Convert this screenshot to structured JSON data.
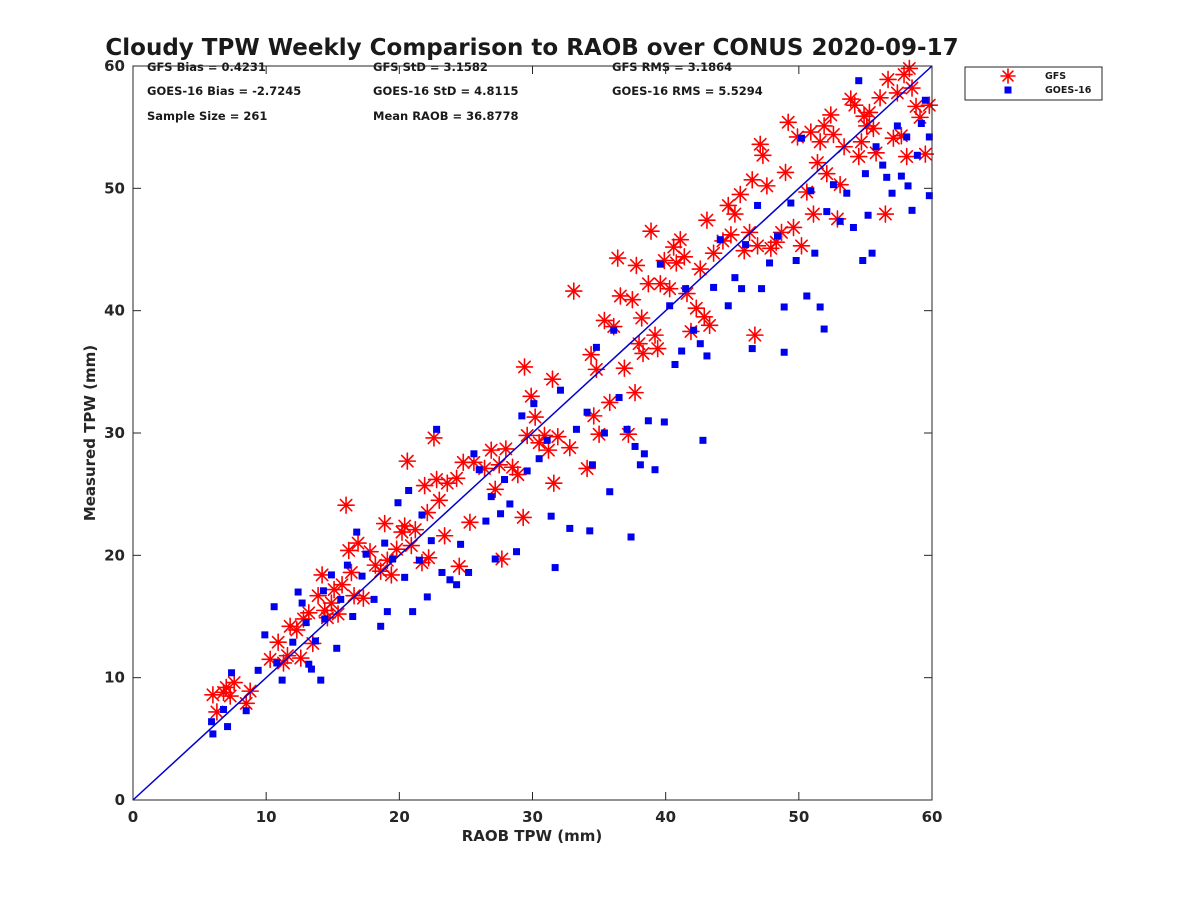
{
  "chart_data": {
    "type": "scatter",
    "title": "Cloudy TPW Weekly Comparison to RAOB over CONUS 2020-09-17",
    "xlabel": "RAOB TPW (mm)",
    "ylabel": "Measured TPW (mm)",
    "xlim": [
      0,
      60
    ],
    "ylim": [
      0,
      60
    ],
    "xticks": [
      0,
      10,
      20,
      30,
      40,
      50,
      60
    ],
    "yticks": [
      0,
      10,
      20,
      30,
      40,
      50,
      60
    ],
    "grid": false,
    "legend_position": "outside-top-right",
    "reference_line": {
      "name": "1:1 line",
      "color": "#0000d0",
      "x": [
        0,
        60
      ],
      "y": [
        0,
        60
      ]
    },
    "stats": [
      "GFS Bias = 0.4231",
      "GFS StD = 3.1582",
      "GFS RMS = 3.1864",
      "GOES-16 Bias = -2.7245",
      "GOES-16 StD = 4.8115",
      "GOES-16 RMS = 5.5294",
      "Sample Size = 261",
      "Mean RAOB = 36.8778"
    ],
    "series": [
      {
        "name": "GFS",
        "marker": "asterisk",
        "color": "#ff0000",
        "points": [
          [
            6,
            8.6
          ],
          [
            6.3,
            7.2
          ],
          [
            6.8,
            8.8
          ],
          [
            7,
            9.2
          ],
          [
            7.3,
            8.5
          ],
          [
            7.6,
            9.6
          ],
          [
            8.5,
            7.9
          ],
          [
            8.8,
            8.9
          ],
          [
            10.3,
            11.5
          ],
          [
            10.9,
            12.9
          ],
          [
            11.3,
            11.2
          ],
          [
            11.6,
            11.8
          ],
          [
            11.8,
            14.2
          ],
          [
            12.3,
            13.9
          ],
          [
            12.6,
            11.6
          ],
          [
            12.8,
            14.8
          ],
          [
            13.2,
            15.3
          ],
          [
            13.5,
            12.8
          ],
          [
            13.9,
            16.7
          ],
          [
            14.2,
            18.4
          ],
          [
            14.4,
            15.5
          ],
          [
            14.6,
            14.9
          ],
          [
            14.9,
            16.1
          ],
          [
            15.1,
            17.2
          ],
          [
            15.4,
            15.2
          ],
          [
            15.7,
            17.6
          ],
          [
            16,
            24.1
          ],
          [
            16.2,
            20.4
          ],
          [
            16.4,
            18.6
          ],
          [
            16.6,
            16.7
          ],
          [
            16.9,
            21
          ],
          [
            17.3,
            16.5
          ],
          [
            17.8,
            20.3
          ],
          [
            18.2,
            19.2
          ],
          [
            18.6,
            18.7
          ],
          [
            18.9,
            22.6
          ],
          [
            19.1,
            19.6
          ],
          [
            19.4,
            18.4
          ],
          [
            19.8,
            20.5
          ],
          [
            20.2,
            21.9
          ],
          [
            20.4,
            22.4
          ],
          [
            20.6,
            27.7
          ],
          [
            20.9,
            20.8
          ],
          [
            21.2,
            22.1
          ],
          [
            21.7,
            19.4
          ],
          [
            21.9,
            25.7
          ],
          [
            22.1,
            23.5
          ],
          [
            22.2,
            19.8
          ],
          [
            22.6,
            29.6
          ],
          [
            22.8,
            26.2
          ],
          [
            23,
            24.5
          ],
          [
            23.4,
            21.6
          ],
          [
            23.6,
            25.9
          ],
          [
            24.3,
            26.3
          ],
          [
            24.5,
            19.1
          ],
          [
            24.8,
            27.6
          ],
          [
            25.3,
            22.7
          ],
          [
            25.6,
            27.6
          ],
          [
            26.4,
            27.1
          ],
          [
            26.9,
            28.6
          ],
          [
            27.2,
            25.4
          ],
          [
            27.5,
            27.4
          ],
          [
            27.7,
            19.7
          ],
          [
            28,
            28.7
          ],
          [
            28.5,
            27.2
          ],
          [
            28.9,
            26.6
          ],
          [
            29.3,
            23.1
          ],
          [
            29.4,
            35.4
          ],
          [
            29.6,
            29.8
          ],
          [
            29.9,
            33
          ],
          [
            30.2,
            31.3
          ],
          [
            30.5,
            29.2
          ],
          [
            30.9,
            29.8
          ],
          [
            31.2,
            28.6
          ],
          [
            31.5,
            34.4
          ],
          [
            31.6,
            25.9
          ],
          [
            31.9,
            29.7
          ],
          [
            32.8,
            28.8
          ],
          [
            33.1,
            41.6
          ],
          [
            34.1,
            27.1
          ],
          [
            34.4,
            36.4
          ],
          [
            34.6,
            31.4
          ],
          [
            34.8,
            35.2
          ],
          [
            35,
            29.9
          ],
          [
            35.4,
            39.2
          ],
          [
            35.8,
            32.5
          ],
          [
            36.1,
            38.7
          ],
          [
            36.4,
            44.3
          ],
          [
            36.6,
            41.2
          ],
          [
            36.9,
            35.3
          ],
          [
            37.2,
            29.9
          ],
          [
            37.5,
            40.9
          ],
          [
            37.7,
            33.3
          ],
          [
            37.8,
            43.7
          ],
          [
            38,
            37.3
          ],
          [
            38.2,
            39.4
          ],
          [
            38.3,
            36.5
          ],
          [
            38.7,
            42.2
          ],
          [
            38.9,
            46.5
          ],
          [
            39.2,
            38
          ],
          [
            39.4,
            36.9
          ],
          [
            39.6,
            42.2
          ],
          [
            39.9,
            44.1
          ],
          [
            40.3,
            41.8
          ],
          [
            40.6,
            45.2
          ],
          [
            40.8,
            43.9
          ],
          [
            41.1,
            45.8
          ],
          [
            41.4,
            44.4
          ],
          [
            41.6,
            41.4
          ],
          [
            41.9,
            38.3
          ],
          [
            42.3,
            40.2
          ],
          [
            42.6,
            43.4
          ],
          [
            42.9,
            39.5
          ],
          [
            43.1,
            47.4
          ],
          [
            43.3,
            38.8
          ],
          [
            43.6,
            44.7
          ],
          [
            44.3,
            45.7
          ],
          [
            44.7,
            48.6
          ],
          [
            44.9,
            46.2
          ],
          [
            45.2,
            47.9
          ],
          [
            45.6,
            49.5
          ],
          [
            45.9,
            44.9
          ],
          [
            46.3,
            46.4
          ],
          [
            46.5,
            50.7
          ],
          [
            46.7,
            38
          ],
          [
            46.9,
            45.3
          ],
          [
            47.1,
            53.6
          ],
          [
            47.3,
            52.7
          ],
          [
            47.6,
            50.2
          ],
          [
            47.9,
            45.1
          ],
          [
            48.3,
            45.6
          ],
          [
            48.7,
            46.4
          ],
          [
            49,
            51.3
          ],
          [
            49.2,
            55.4
          ],
          [
            49.6,
            46.8
          ],
          [
            49.9,
            54.2
          ],
          [
            50.2,
            45.3
          ],
          [
            50.6,
            49.7
          ],
          [
            50.9,
            54.6
          ],
          [
            51.1,
            47.9
          ],
          [
            51.4,
            52.1
          ],
          [
            51.6,
            53.8
          ],
          [
            51.9,
            55.1
          ],
          [
            52.1,
            51.2
          ],
          [
            52.4,
            56
          ],
          [
            52.6,
            54.4
          ],
          [
            52.9,
            47.5
          ],
          [
            53.1,
            50.3
          ],
          [
            53.4,
            53.4
          ],
          [
            53.9,
            57.3
          ],
          [
            54.2,
            56.8
          ],
          [
            54.5,
            52.6
          ],
          [
            54.7,
            53.8
          ],
          [
            54.9,
            55.9
          ],
          [
            55.1,
            55.1
          ],
          [
            55.3,
            56.2
          ],
          [
            55.6,
            54.9
          ],
          [
            55.8,
            52.9
          ],
          [
            56.1,
            57.4
          ],
          [
            56.5,
            47.9
          ],
          [
            56.7,
            58.9
          ],
          [
            57.1,
            54.1
          ],
          [
            57.4,
            57.8
          ],
          [
            57.7,
            54.3
          ],
          [
            57.9,
            59.3
          ],
          [
            58.1,
            52.6
          ],
          [
            58.3,
            59.8
          ],
          [
            58.5,
            58.2
          ],
          [
            58.8,
            56.7
          ],
          [
            59.1,
            55.8
          ],
          [
            59.5,
            52.8
          ],
          [
            59.8,
            56.8
          ]
        ]
      },
      {
        "name": "GOES-16",
        "marker": "square",
        "color": "#0000ee",
        "points": [
          [
            5.9,
            6.4
          ],
          [
            6,
            5.4
          ],
          [
            6.8,
            7.4
          ],
          [
            7.1,
            6
          ],
          [
            7.4,
            10.4
          ],
          [
            8.5,
            7.3
          ],
          [
            9.4,
            10.6
          ],
          [
            9.9,
            13.5
          ],
          [
            10.6,
            15.8
          ],
          [
            10.8,
            11.2
          ],
          [
            11.2,
            9.8
          ],
          [
            12,
            12.9
          ],
          [
            12.4,
            17
          ],
          [
            12.7,
            16.1
          ],
          [
            13,
            14.5
          ],
          [
            13.2,
            11.1
          ],
          [
            13.4,
            10.7
          ],
          [
            13.7,
            13
          ],
          [
            14.1,
            9.8
          ],
          [
            14.3,
            17.1
          ],
          [
            14.4,
            14.8
          ],
          [
            14.9,
            18.4
          ],
          [
            15.3,
            12.4
          ],
          [
            15.6,
            16.4
          ],
          [
            16.1,
            19.2
          ],
          [
            16.5,
            15
          ],
          [
            16.8,
            21.9
          ],
          [
            17.2,
            18.3
          ],
          [
            17.5,
            20.1
          ],
          [
            18.1,
            16.4
          ],
          [
            18.6,
            14.2
          ],
          [
            18.9,
            21
          ],
          [
            19.1,
            15.4
          ],
          [
            19.5,
            19.7
          ],
          [
            19.9,
            24.3
          ],
          [
            20.4,
            18.2
          ],
          [
            20.7,
            25.3
          ],
          [
            21,
            15.4
          ],
          [
            21.5,
            19.6
          ],
          [
            21.7,
            23.3
          ],
          [
            22.1,
            16.6
          ],
          [
            22.4,
            21.2
          ],
          [
            22.8,
            30.3
          ],
          [
            23.2,
            18.6
          ],
          [
            23.8,
            18
          ],
          [
            24.3,
            17.6
          ],
          [
            24.6,
            20.9
          ],
          [
            25.2,
            18.6
          ],
          [
            25.6,
            28.3
          ],
          [
            26,
            27
          ],
          [
            26.5,
            22.8
          ],
          [
            26.9,
            24.8
          ],
          [
            27.2,
            19.7
          ],
          [
            27.6,
            23.4
          ],
          [
            27.9,
            26.2
          ],
          [
            28.3,
            24.2
          ],
          [
            28.8,
            20.3
          ],
          [
            29.2,
            31.4
          ],
          [
            29.6,
            26.9
          ],
          [
            30.1,
            32.4
          ],
          [
            30.5,
            27.9
          ],
          [
            31.1,
            29.4
          ],
          [
            31.4,
            23.2
          ],
          [
            31.7,
            19
          ],
          [
            32.1,
            33.5
          ],
          [
            32.8,
            22.2
          ],
          [
            33.3,
            30.3
          ],
          [
            34.1,
            31.7
          ],
          [
            34.3,
            22
          ],
          [
            34.5,
            27.4
          ],
          [
            34.8,
            37
          ],
          [
            35.4,
            30
          ],
          [
            35.8,
            25.2
          ],
          [
            36.1,
            38.4
          ],
          [
            36.5,
            32.9
          ],
          [
            37.1,
            30.3
          ],
          [
            37.4,
            21.5
          ],
          [
            37.7,
            28.9
          ],
          [
            38.1,
            27.4
          ],
          [
            38.4,
            28.3
          ],
          [
            38.7,
            31
          ],
          [
            39.2,
            27
          ],
          [
            39.6,
            43.8
          ],
          [
            39.9,
            30.9
          ],
          [
            40.3,
            40.4
          ],
          [
            40.7,
            35.6
          ],
          [
            41.2,
            36.7
          ],
          [
            41.5,
            41.8
          ],
          [
            42.1,
            38.4
          ],
          [
            42.6,
            37.3
          ],
          [
            42.8,
            29.4
          ],
          [
            43.1,
            36.3
          ],
          [
            43.6,
            41.9
          ],
          [
            44.1,
            45.8
          ],
          [
            44.7,
            40.4
          ],
          [
            45.2,
            42.7
          ],
          [
            45.7,
            41.8
          ],
          [
            46,
            45.4
          ],
          [
            46.5,
            36.9
          ],
          [
            46.9,
            48.6
          ],
          [
            47.2,
            41.8
          ],
          [
            47.8,
            43.9
          ],
          [
            48.4,
            46.1
          ],
          [
            48.9,
            40.3
          ],
          [
            48.9,
            36.6
          ],
          [
            49.4,
            48.8
          ],
          [
            49.8,
            44.1
          ],
          [
            50.2,
            54.1
          ],
          [
            50.6,
            41.2
          ],
          [
            50.9,
            49.8
          ],
          [
            51.2,
            44.7
          ],
          [
            51.6,
            40.3
          ],
          [
            51.9,
            38.5
          ],
          [
            52.1,
            48.1
          ],
          [
            52.6,
            50.3
          ],
          [
            53.1,
            47.3
          ],
          [
            53.6,
            49.6
          ],
          [
            54.1,
            46.8
          ],
          [
            54.5,
            58.8
          ],
          [
            54.8,
            44.1
          ],
          [
            55,
            51.2
          ],
          [
            55.2,
            47.8
          ],
          [
            55.5,
            44.7
          ],
          [
            55.8,
            53.4
          ],
          [
            56.3,
            51.9
          ],
          [
            56.6,
            50.9
          ],
          [
            57,
            49.6
          ],
          [
            57.4,
            55.1
          ],
          [
            57.7,
            51
          ],
          [
            58.1,
            54.2
          ],
          [
            58.2,
            50.2
          ],
          [
            58.5,
            48.2
          ],
          [
            58.9,
            52.7
          ],
          [
            59.2,
            55.3
          ],
          [
            59.5,
            57.2
          ],
          [
            59.8,
            49.4
          ],
          [
            59.8,
            54.2
          ]
        ]
      }
    ]
  }
}
